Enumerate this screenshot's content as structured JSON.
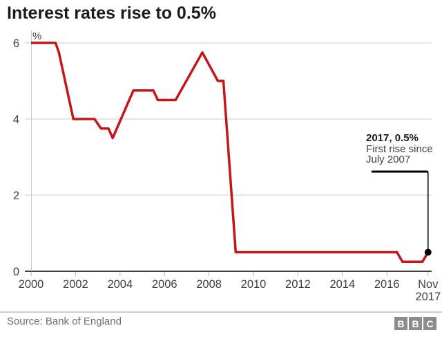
{
  "title": "Interest rates rise to 0.5%",
  "annotation": {
    "heading": "2017, 0.5%",
    "line2": "First rise since",
    "line3": "July 2007"
  },
  "footer": {
    "source": "Source: Bank of England",
    "logo_letters": [
      "B",
      "B",
      "C"
    ]
  },
  "colors": {
    "line": "#c21618",
    "grid": "#cccccc",
    "axis": "#404040",
    "tick": "#b3b3b3",
    "label": "#404040",
    "callout": "#000000",
    "dot": "#000000"
  },
  "chart_data": {
    "type": "line",
    "title": "Interest rates rise to 0.5%",
    "unit_label": "%",
    "xlabel": "",
    "ylabel": "%",
    "xlim": [
      2000,
      2017.85
    ],
    "ylim": [
      0,
      6
    ],
    "grid": true,
    "legend": "none",
    "x_ticks": [
      {
        "year": 2000,
        "label": "2000"
      },
      {
        "year": 2002,
        "label": "2002"
      },
      {
        "year": 2004,
        "label": "2004"
      },
      {
        "year": 2006,
        "label": "2006"
      },
      {
        "year": 2008,
        "label": "2008"
      },
      {
        "year": 2010,
        "label": "2010"
      },
      {
        "year": 2012,
        "label": "2012"
      },
      {
        "year": 2014,
        "label": "2014"
      },
      {
        "year": 2016,
        "label": "2016"
      },
      {
        "year": 2017.85,
        "label": "Nov",
        "label2": "2017"
      }
    ],
    "y_ticks": [
      {
        "value": 0,
        "label": "0"
      },
      {
        "value": 2,
        "label": "2"
      },
      {
        "value": 4,
        "label": "4"
      },
      {
        "value": 6,
        "label": "6"
      }
    ],
    "series": [
      {
        "name": "Interest rate",
        "color": "#c21618",
        "points": [
          [
            2000.0,
            6.0
          ],
          [
            2001.1,
            6.0
          ],
          [
            2001.25,
            5.75
          ],
          [
            2001.9,
            4.0
          ],
          [
            2002.85,
            4.0
          ],
          [
            2003.15,
            3.75
          ],
          [
            2003.48,
            3.75
          ],
          [
            2003.67,
            3.5
          ],
          [
            2004.6,
            4.75
          ],
          [
            2005.5,
            4.75
          ],
          [
            2005.7,
            4.5
          ],
          [
            2006.5,
            4.5
          ],
          [
            2007.7,
            5.75
          ],
          [
            2008.4,
            5.0
          ],
          [
            2008.65,
            5.0
          ],
          [
            2009.2,
            0.5
          ],
          [
            2016.45,
            0.5
          ],
          [
            2016.7,
            0.25
          ],
          [
            2017.6,
            0.25
          ],
          [
            2017.85,
            0.5
          ]
        ]
      }
    ],
    "endpoint": {
      "year": 2017.85,
      "value": 0.5,
      "marker": "dot"
    }
  }
}
